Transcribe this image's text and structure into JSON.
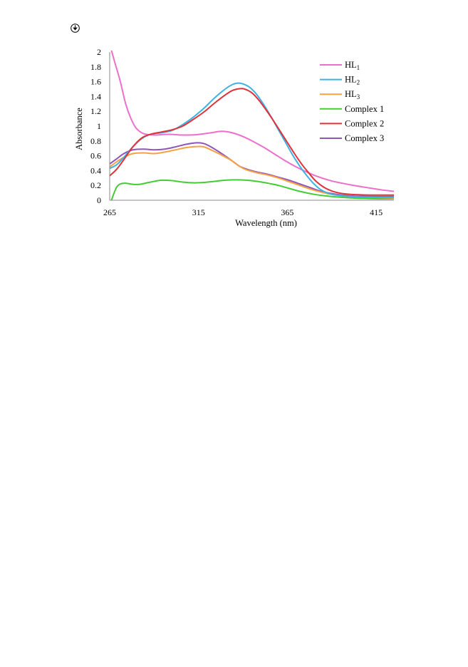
{
  "page": {
    "marker_icon": "circled-arrow-icon"
  },
  "chart_data": {
    "type": "line",
    "title": "",
    "xlabel": "Wavelength (nm)",
    "ylabel": "Absorbance",
    "xlim": [
      265,
      425
    ],
    "ylim": [
      0,
      2
    ],
    "x_ticks": [
      265,
      315,
      365,
      415
    ],
    "y_ticks": [
      0,
      0.2,
      0.4,
      0.6,
      0.8,
      1,
      1.2,
      1.4,
      1.6,
      1.8,
      2
    ],
    "x_tick_labels": [
      "265",
      "315",
      "365",
      "415"
    ],
    "y_tick_labels": [
      "0",
      "0.2",
      "0.4",
      "0.6",
      "0.8",
      "1",
      "1.2",
      "1.4",
      "1.6",
      "1.8",
      "2"
    ],
    "grid": false,
    "legend_position": "top-right",
    "series": [
      {
        "name_base": "HL",
        "name_sub": "1",
        "color": "#ee6fcb",
        "points": [
          [
            266,
            2.02
          ],
          [
            268,
            1.85
          ],
          [
            271,
            1.6
          ],
          [
            274,
            1.3
          ],
          [
            277,
            1.1
          ],
          [
            280,
            0.97
          ],
          [
            284,
            0.9
          ],
          [
            290,
            0.88
          ],
          [
            298,
            0.89
          ],
          [
            306,
            0.88
          ],
          [
            314,
            0.885
          ],
          [
            322,
            0.91
          ],
          [
            328,
            0.93
          ],
          [
            334,
            0.91
          ],
          [
            340,
            0.86
          ],
          [
            346,
            0.79
          ],
          [
            352,
            0.71
          ],
          [
            358,
            0.62
          ],
          [
            364,
            0.53
          ],
          [
            370,
            0.45
          ],
          [
            376,
            0.38
          ],
          [
            382,
            0.32
          ],
          [
            390,
            0.26
          ],
          [
            400,
            0.21
          ],
          [
            410,
            0.17
          ],
          [
            418,
            0.14
          ],
          [
            425,
            0.12
          ]
        ]
      },
      {
        "name_base": "HL",
        "name_sub": "2",
        "color": "#3fb1e3",
        "points": [
          [
            265,
            0.43
          ],
          [
            269,
            0.48
          ],
          [
            273,
            0.58
          ],
          [
            278,
            0.72
          ],
          [
            283,
            0.83
          ],
          [
            288,
            0.89
          ],
          [
            294,
            0.91
          ],
          [
            300,
            0.94
          ],
          [
            306,
            1.02
          ],
          [
            312,
            1.12
          ],
          [
            318,
            1.24
          ],
          [
            324,
            1.38
          ],
          [
            330,
            1.5
          ],
          [
            334,
            1.56
          ],
          [
            337,
            1.58
          ],
          [
            340,
            1.57
          ],
          [
            344,
            1.52
          ],
          [
            348,
            1.42
          ],
          [
            352,
            1.28
          ],
          [
            356,
            1.12
          ],
          [
            360,
            0.95
          ],
          [
            364,
            0.78
          ],
          [
            368,
            0.61
          ],
          [
            372,
            0.46
          ],
          [
            376,
            0.33
          ],
          [
            380,
            0.22
          ],
          [
            384,
            0.14
          ],
          [
            390,
            0.08
          ],
          [
            400,
            0.05
          ],
          [
            412,
            0.04
          ],
          [
            425,
            0.04
          ]
        ]
      },
      {
        "name_base": "HL",
        "name_sub": "3",
        "color": "#f7a046",
        "points": [
          [
            265,
            0.45
          ],
          [
            269,
            0.52
          ],
          [
            273,
            0.58
          ],
          [
            278,
            0.63
          ],
          [
            284,
            0.64
          ],
          [
            290,
            0.63
          ],
          [
            296,
            0.65
          ],
          [
            302,
            0.68
          ],
          [
            308,
            0.71
          ],
          [
            314,
            0.725
          ],
          [
            318,
            0.72
          ],
          [
            322,
            0.68
          ],
          [
            328,
            0.61
          ],
          [
            334,
            0.53
          ],
          [
            338,
            0.46
          ],
          [
            342,
            0.41
          ],
          [
            348,
            0.37
          ],
          [
            354,
            0.34
          ],
          [
            360,
            0.3
          ],
          [
            366,
            0.25
          ],
          [
            372,
            0.2
          ],
          [
            378,
            0.15
          ],
          [
            384,
            0.11
          ],
          [
            390,
            0.08
          ],
          [
            400,
            0.05
          ],
          [
            412,
            0.04
          ],
          [
            425,
            0.03
          ]
        ]
      },
      {
        "name": "Complex 1",
        "color": "#44cc33",
        "points": [
          [
            266,
            0.0
          ],
          [
            267.5,
            0.1
          ],
          [
            269,
            0.18
          ],
          [
            271,
            0.22
          ],
          [
            274,
            0.23
          ],
          [
            278,
            0.215
          ],
          [
            282,
            0.215
          ],
          [
            288,
            0.245
          ],
          [
            294,
            0.27
          ],
          [
            300,
            0.265
          ],
          [
            306,
            0.245
          ],
          [
            312,
            0.235
          ],
          [
            318,
            0.24
          ],
          [
            324,
            0.255
          ],
          [
            330,
            0.27
          ],
          [
            336,
            0.275
          ],
          [
            342,
            0.27
          ],
          [
            348,
            0.255
          ],
          [
            354,
            0.23
          ],
          [
            360,
            0.2
          ],
          [
            366,
            0.16
          ],
          [
            372,
            0.12
          ],
          [
            380,
            0.08
          ],
          [
            390,
            0.05
          ],
          [
            402,
            0.03
          ],
          [
            414,
            0.02
          ],
          [
            425,
            0.02
          ]
        ]
      },
      {
        "name": "Complex 2",
        "color": "#e0323a",
        "points": [
          [
            265,
            0.33
          ],
          [
            269,
            0.42
          ],
          [
            273,
            0.55
          ],
          [
            278,
            0.72
          ],
          [
            283,
            0.84
          ],
          [
            288,
            0.89
          ],
          [
            294,
            0.92
          ],
          [
            300,
            0.95
          ],
          [
            306,
            1.0
          ],
          [
            312,
            1.09
          ],
          [
            318,
            1.19
          ],
          [
            324,
            1.31
          ],
          [
            330,
            1.42
          ],
          [
            334,
            1.48
          ],
          [
            338,
            1.505
          ],
          [
            341,
            1.5
          ],
          [
            345,
            1.45
          ],
          [
            349,
            1.35
          ],
          [
            353,
            1.22
          ],
          [
            357,
            1.08
          ],
          [
            361,
            0.93
          ],
          [
            365,
            0.78
          ],
          [
            369,
            0.63
          ],
          [
            373,
            0.49
          ],
          [
            377,
            0.37
          ],
          [
            381,
            0.26
          ],
          [
            386,
            0.17
          ],
          [
            392,
            0.11
          ],
          [
            400,
            0.08
          ],
          [
            412,
            0.07
          ],
          [
            425,
            0.07
          ]
        ]
      },
      {
        "name": "Complex 3",
        "color": "#8e56b7",
        "points": [
          [
            265,
            0.49
          ],
          [
            269,
            0.56
          ],
          [
            273,
            0.63
          ],
          [
            278,
            0.68
          ],
          [
            284,
            0.69
          ],
          [
            290,
            0.68
          ],
          [
            296,
            0.69
          ],
          [
            302,
            0.72
          ],
          [
            308,
            0.755
          ],
          [
            314,
            0.775
          ],
          [
            318,
            0.765
          ],
          [
            322,
            0.72
          ],
          [
            328,
            0.63
          ],
          [
            334,
            0.53
          ],
          [
            338,
            0.46
          ],
          [
            342,
            0.42
          ],
          [
            348,
            0.38
          ],
          [
            354,
            0.35
          ],
          [
            360,
            0.31
          ],
          [
            366,
            0.27
          ],
          [
            372,
            0.22
          ],
          [
            378,
            0.17
          ],
          [
            384,
            0.12
          ],
          [
            390,
            0.09
          ],
          [
            400,
            0.06
          ],
          [
            412,
            0.05
          ],
          [
            425,
            0.05
          ]
        ]
      }
    ]
  }
}
